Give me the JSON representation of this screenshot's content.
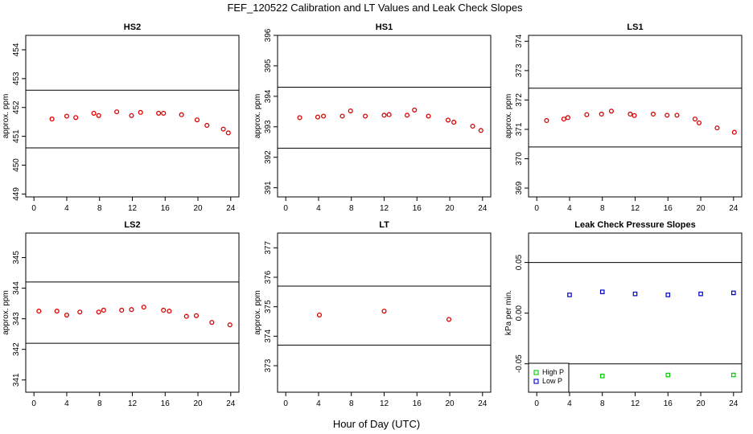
{
  "figure": {
    "title": "FEF_120522  Calibration and LT Values and Leak Check Slopes",
    "xlabel": "Hour of Day (UTC)"
  },
  "chart_data": [
    {
      "type": "scatter",
      "title": "HS2",
      "ylabel": "approx. ppm",
      "xlim": [
        -1,
        25
      ],
      "ylim": [
        448.9,
        454.5
      ],
      "xticks": [
        "0",
        "4",
        "8",
        "12",
        "16",
        "20",
        "24"
      ],
      "yticks": [
        "449",
        "450",
        "451",
        "452",
        "453",
        "454"
      ],
      "hlines": [
        452.6,
        450.6
      ],
      "series": [
        {
          "color": "#dd0000",
          "symbol": "circle",
          "x": [
            2.2,
            4.0,
            5.1,
            7.3,
            7.9,
            10.1,
            11.9,
            13.0,
            15.2,
            15.8,
            18.0,
            19.9,
            21.1,
            23.1,
            23.7
          ],
          "y": [
            451.6,
            451.7,
            451.65,
            451.8,
            451.72,
            451.85,
            451.72,
            451.83,
            451.8,
            451.8,
            451.75,
            451.57,
            451.38,
            451.25,
            451.12
          ]
        }
      ]
    },
    {
      "type": "scatter",
      "title": "HS1",
      "ylabel": "approx. ppm",
      "xlim": [
        -1,
        25
      ],
      "ylim": [
        390.7,
        396.0
      ],
      "xticks": [
        "0",
        "4",
        "8",
        "12",
        "16",
        "20",
        "24"
      ],
      "yticks": [
        "391",
        "392",
        "393",
        "394",
        "395",
        "396"
      ],
      "hlines": [
        394.3,
        392.3
      ],
      "series": [
        {
          "color": "#dd0000",
          "symbol": "circle",
          "x": [
            1.7,
            3.9,
            4.6,
            6.9,
            7.9,
            9.7,
            12.0,
            12.6,
            14.8,
            15.7,
            17.4,
            19.8,
            20.5,
            22.8,
            23.8
          ],
          "y": [
            393.3,
            393.32,
            393.35,
            393.35,
            393.52,
            393.35,
            393.38,
            393.4,
            393.38,
            393.55,
            393.35,
            393.22,
            393.15,
            393.02,
            392.88
          ]
        }
      ]
    },
    {
      "type": "scatter",
      "title": "LS1",
      "ylabel": "approx. ppm",
      "xlim": [
        -1,
        25
      ],
      "ylim": [
        368.7,
        374.2
      ],
      "xticks": [
        "0",
        "4",
        "8",
        "12",
        "16",
        "20",
        "24"
      ],
      "yticks": [
        "369",
        "370",
        "371",
        "372",
        "373",
        "374"
      ],
      "hlines": [
        372.4,
        370.4
      ],
      "series": [
        {
          "color": "#dd0000",
          "symbol": "circle",
          "x": [
            1.2,
            3.3,
            3.8,
            6.1,
            7.9,
            9.1,
            11.4,
            11.9,
            14.2,
            15.9,
            17.1,
            19.3,
            19.8,
            22.0,
            24.1
          ],
          "y": [
            371.3,
            371.35,
            371.4,
            371.5,
            371.52,
            371.62,
            371.52,
            371.47,
            371.52,
            371.48,
            371.48,
            371.35,
            371.22,
            371.05,
            370.9
          ]
        }
      ]
    },
    {
      "type": "scatter",
      "title": "LS2",
      "ylabel": "approx. ppm",
      "xlim": [
        -1,
        25
      ],
      "ylim": [
        340.6,
        345.8
      ],
      "xticks": [
        "0",
        "4",
        "8",
        "12",
        "16",
        "20",
        "24"
      ],
      "yticks": [
        "341",
        "342",
        "343",
        "344",
        "345"
      ],
      "hlines": [
        344.2,
        342.2
      ],
      "series": [
        {
          "color": "#dd0000",
          "symbol": "circle",
          "x": [
            0.6,
            2.8,
            4.0,
            5.6,
            7.9,
            8.5,
            10.7,
            11.9,
            13.4,
            15.8,
            16.5,
            18.6,
            19.8,
            21.7,
            23.9
          ],
          "y": [
            343.25,
            343.25,
            343.12,
            343.22,
            343.22,
            343.28,
            343.28,
            343.3,
            343.38,
            343.28,
            343.25,
            343.08,
            343.1,
            342.88,
            342.8
          ]
        }
      ]
    },
    {
      "type": "scatter",
      "title": "LT",
      "ylabel": "approx. ppm",
      "xlim": [
        -1,
        25
      ],
      "ylim": [
        372.1,
        377.5
      ],
      "xticks": [
        "0",
        "4",
        "8",
        "12",
        "16",
        "20",
        "24"
      ],
      "yticks": [
        "373",
        "374",
        "375",
        "376",
        "377"
      ],
      "hlines": [
        375.7,
        373.7
      ],
      "series": [
        {
          "color": "#dd0000",
          "symbol": "circle",
          "x": [
            4.1,
            12.0,
            19.9
          ],
          "y": [
            374.72,
            374.85,
            374.57
          ]
        }
      ]
    },
    {
      "type": "scatter",
      "title": "Leak Check Pressure Slopes",
      "ylabel": "kPa per min.",
      "xlim": [
        -1,
        25
      ],
      "ylim": [
        -0.078,
        0.079
      ],
      "xticks": [
        "0",
        "4",
        "8",
        "12",
        "16",
        "20",
        "24"
      ],
      "yticks": [
        "-0.05",
        "0.00",
        "0.05"
      ],
      "ytick_values": [
        -0.05,
        0.0,
        0.05
      ],
      "hlines": [
        0.05,
        -0.05
      ],
      "legend": "bottom-left",
      "series": [
        {
          "name": "High P",
          "color": "#00cc00",
          "symbol": "square",
          "x": [
            8.0,
            16.0,
            24.0
          ],
          "y": [
            -0.062,
            -0.061,
            -0.061
          ]
        },
        {
          "name": "Low P",
          "color": "#0000cc",
          "symbol": "square",
          "x": [
            4.0,
            8.0,
            12.0,
            16.0,
            20.0,
            24.0
          ],
          "y": [
            0.018,
            0.021,
            0.019,
            0.018,
            0.019,
            0.02
          ]
        }
      ]
    }
  ]
}
